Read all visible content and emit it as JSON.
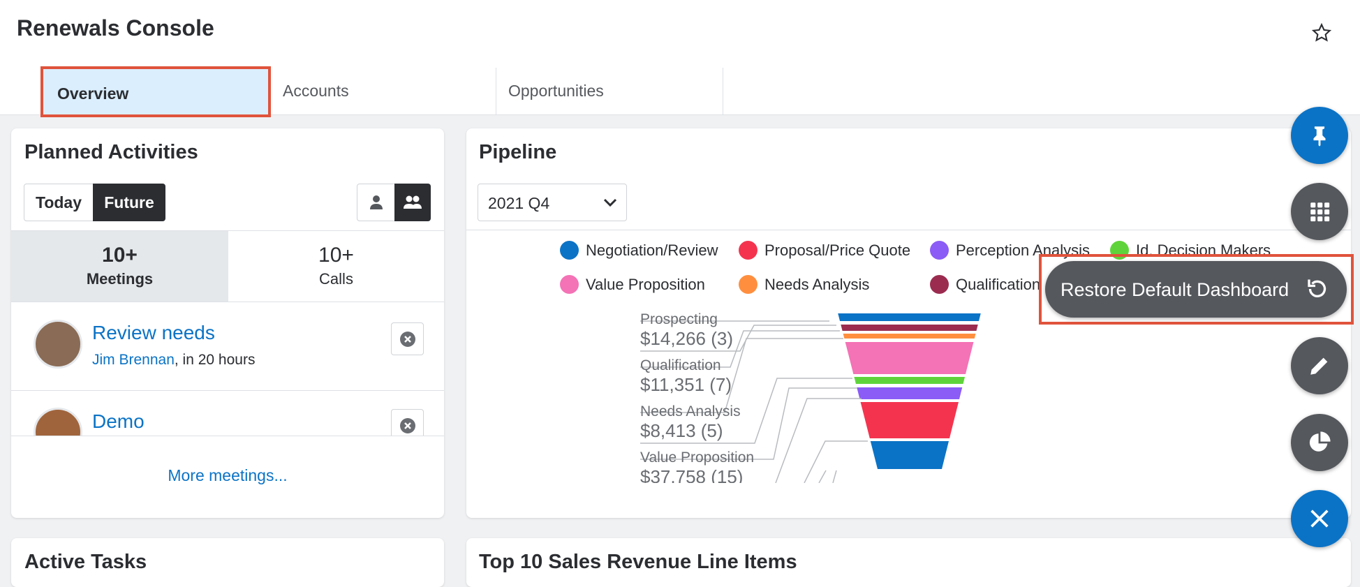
{
  "header": {
    "title": "Renewals Console",
    "tabs": [
      "Overview",
      "Accounts",
      "Opportunities"
    ]
  },
  "planned_activities": {
    "title": "Planned Activities",
    "toggle": [
      "Today",
      "Future"
    ],
    "counts": [
      {
        "value": "10+",
        "label": "Meetings"
      },
      {
        "value": "10+",
        "label": "Calls"
      }
    ],
    "items": [
      {
        "title": "Review needs",
        "person": "Jim Brennan",
        "when": ", in 20 hours"
      },
      {
        "title": "Demo"
      }
    ],
    "more": "More meetings..."
  },
  "pipeline": {
    "title": "Pipeline",
    "period": "2021 Q4",
    "legend": [
      {
        "name": "Negotiation/Review",
        "color": "#0b73c6"
      },
      {
        "name": "Proposal/Price Quote",
        "color": "#f4344f"
      },
      {
        "name": "Perception Analysis",
        "color": "#8b5cf6"
      },
      {
        "name": "Id. Decision Makers",
        "color": "#5fd43a"
      },
      {
        "name": "Value Proposition",
        "color": "#f472b6"
      },
      {
        "name": "Needs Analysis",
        "color": "#ff8f3f"
      },
      {
        "name": "Qualification",
        "color": "#9b2c50"
      }
    ],
    "labels": [
      {
        "stage": "Prospecting",
        "amount": "$14,266 (3)"
      },
      {
        "stage": "Qualification",
        "amount": "$11,351 (7)"
      },
      {
        "stage": "Needs Analysis",
        "amount": "$8,413 (5)"
      },
      {
        "stage": "Value Proposition",
        "amount": "$37,758 (15)"
      }
    ]
  },
  "menu": {
    "restore": "Restore Default Dashboard"
  },
  "bottom": {
    "left": "Active Tasks",
    "right": "Top 10 Sales Revenue Line Items"
  }
}
